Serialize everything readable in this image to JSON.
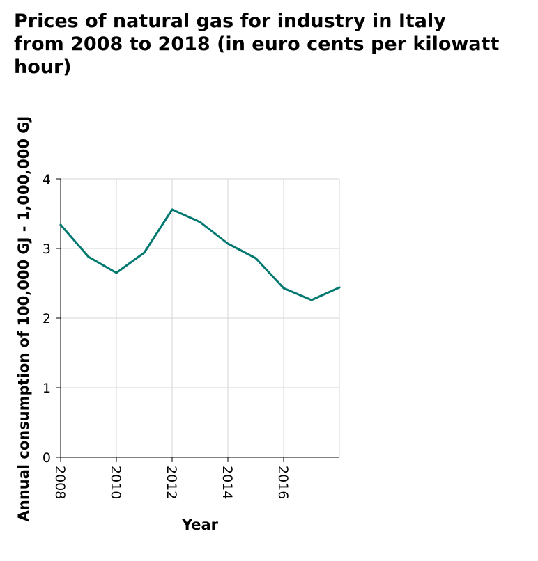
{
  "chart_data": {
    "type": "line",
    "title_lines": [
      "Prices of natural gas for industry in Italy",
      "from 2008 to 2018 (in euro cents per kilowatt",
      "hour)"
    ],
    "xlabel": "Year",
    "ylabel": "Annual consumption of 100,000 GJ - 1,000,000 GJ",
    "x": [
      2008,
      2009,
      2010,
      2011,
      2012,
      2013,
      2014,
      2015,
      2016,
      2017,
      2018
    ],
    "series": [
      {
        "values": [
          3.34,
          2.88,
          2.65,
          2.94,
          3.56,
          3.38,
          3.07,
          2.86,
          2.43,
          2.26,
          2.44
        ],
        "color": "#00786f"
      }
    ],
    "xlim": [
      2008,
      2018
    ],
    "ylim": [
      0,
      4
    ],
    "x_ticks": [
      2008,
      2010,
      2012,
      2014,
      2016
    ],
    "y_ticks": [
      0,
      1,
      2,
      3,
      4
    ],
    "grid": true,
    "grid_color": "#d4d4d4"
  }
}
